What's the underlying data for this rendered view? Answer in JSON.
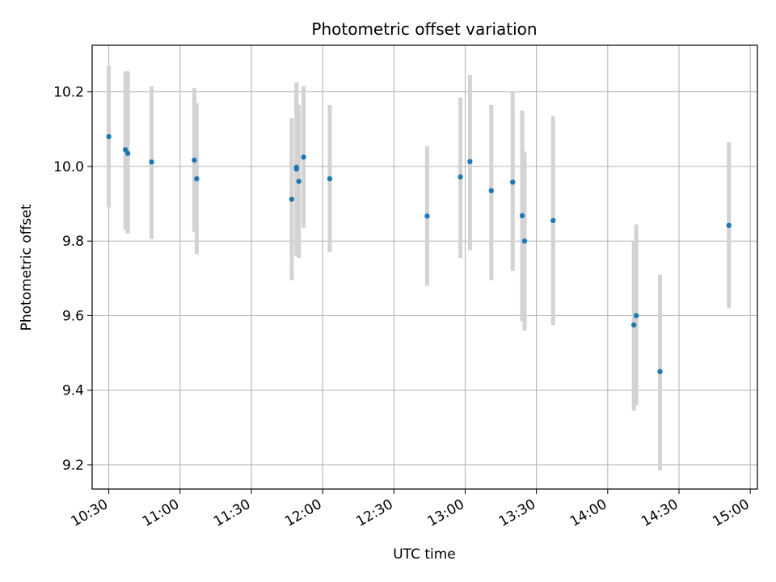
{
  "chart_data": {
    "type": "scatter",
    "title": "Photometric offset variation",
    "xlabel": "UTC time",
    "ylabel": "Photometric offset",
    "grid": true,
    "xlim": [
      "10:23",
      "15:03"
    ],
    "ylim": [
      9.135,
      10.325
    ],
    "x_ticks": [
      "10:30",
      "11:00",
      "11:30",
      "12:00",
      "12:30",
      "13:00",
      "13:30",
      "14:00",
      "14:30",
      "15:00"
    ],
    "y_ticks": [
      9.2,
      9.4,
      9.6,
      9.8,
      10.0,
      10.2
    ],
    "y_tick_labels": [
      "9.2",
      "9.4",
      "9.6",
      "9.8",
      "10.0",
      "10.2"
    ],
    "point_color": "#1f77b4",
    "errorbar_color": "#d3d3d3",
    "series": [
      {
        "points": [
          {
            "t": "10:30",
            "y": 10.08,
            "lo": 9.89,
            "hi": 10.27
          },
          {
            "t": "10:37",
            "y": 10.045,
            "lo": 9.83,
            "hi": 10.255
          },
          {
            "t": "10:38",
            "y": 10.035,
            "lo": 9.82,
            "hi": 10.255
          },
          {
            "t": "10:48",
            "y": 10.012,
            "lo": 9.805,
            "hi": 10.215
          },
          {
            "t": "11:06",
            "y": 10.017,
            "lo": 9.825,
            "hi": 10.21
          },
          {
            "t": "11:07",
            "y": 9.967,
            "lo": 9.765,
            "hi": 10.17
          },
          {
            "t": "11:47",
            "y": 9.912,
            "lo": 9.695,
            "hi": 10.13
          },
          {
            "t": "11:49",
            "y": 9.998,
            "lo": 9.76,
            "hi": 10.225
          },
          {
            "t": "11:49",
            "y": 9.993,
            "lo": 9.76,
            "hi": 10.225
          },
          {
            "t": "11:50",
            "y": 9.96,
            "lo": 9.755,
            "hi": 10.165
          },
          {
            "t": "11:52",
            "y": 10.025,
            "lo": 9.835,
            "hi": 10.215
          },
          {
            "t": "12:03",
            "y": 9.967,
            "lo": 9.77,
            "hi": 10.165
          },
          {
            "t": "12:44",
            "y": 9.867,
            "lo": 9.68,
            "hi": 10.055
          },
          {
            "t": "12:58",
            "y": 9.972,
            "lo": 9.755,
            "hi": 10.185
          },
          {
            "t": "13:02",
            "y": 10.013,
            "lo": 9.775,
            "hi": 10.245
          },
          {
            "t": "13:11",
            "y": 9.935,
            "lo": 9.695,
            "hi": 10.165
          },
          {
            "t": "13:20",
            "y": 9.958,
            "lo": 9.72,
            "hi": 10.2
          },
          {
            "t": "13:24",
            "y": 9.868,
            "lo": 9.585,
            "hi": 10.15
          },
          {
            "t": "13:25",
            "y": 9.8,
            "lo": 9.56,
            "hi": 10.04
          },
          {
            "t": "13:37",
            "y": 9.855,
            "lo": 9.575,
            "hi": 10.135
          },
          {
            "t": "14:11",
            "y": 9.575,
            "lo": 9.345,
            "hi": 9.8
          },
          {
            "t": "14:12",
            "y": 9.6,
            "lo": 9.36,
            "hi": 9.845
          },
          {
            "t": "14:22",
            "y": 9.45,
            "lo": 9.185,
            "hi": 9.71
          },
          {
            "t": "14:51",
            "y": 9.842,
            "lo": 9.62,
            "hi": 10.065
          }
        ]
      }
    ]
  }
}
